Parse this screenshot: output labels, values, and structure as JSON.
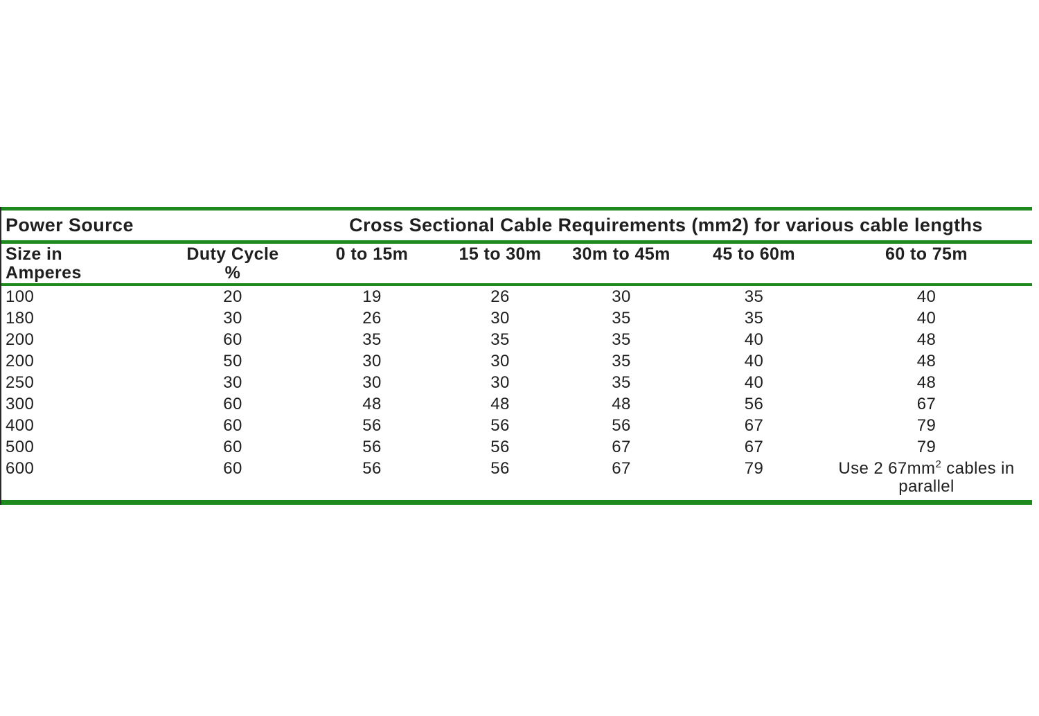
{
  "colors": {
    "line_green": "#1e8a1e",
    "text": "#1f1f1f",
    "left_border": "#2a2a2a"
  },
  "table": {
    "group_header": {
      "left": "Power Source",
      "right": "Cross Sectional Cable Requirements (mm2) for various cable lengths"
    },
    "column_headers": {
      "size_line1": "Size in",
      "size_line2": "Amperes",
      "duty_line1": "Duty Cycle",
      "duty_line2": "%",
      "range_0_15": "0 to 15m",
      "range_15_30": "15 to 30m",
      "range_30_45": "30m to 45m",
      "range_45_60": "45 to 60m",
      "range_60_75": "60 to 75m"
    },
    "rows": [
      [
        "100",
        "20",
        "19",
        "26",
        "30",
        "35",
        "40"
      ],
      [
        "180",
        "30",
        "26",
        "30",
        "35",
        "35",
        "40"
      ],
      [
        "200",
        "60",
        "35",
        "35",
        "35",
        "40",
        "48"
      ],
      [
        "200",
        "50",
        "30",
        "30",
        "35",
        "40",
        "48"
      ],
      [
        "250",
        "30",
        "30",
        "30",
        "35",
        "40",
        "48"
      ],
      [
        "300",
        "60",
        "48",
        "48",
        "48",
        "56",
        "67"
      ],
      [
        "400",
        "60",
        "56",
        "56",
        "56",
        "67",
        "79"
      ],
      [
        "500",
        "60",
        "56",
        "56",
        "67",
        "67",
        "79"
      ],
      [
        "600",
        "60",
        "56",
        "56",
        "67",
        "79"
      ]
    ],
    "last_row_note": {
      "text_before_sup": "Use 2 67mm",
      "sup": "2",
      "text_after_sup": " cables in",
      "line2": "parallel"
    }
  }
}
